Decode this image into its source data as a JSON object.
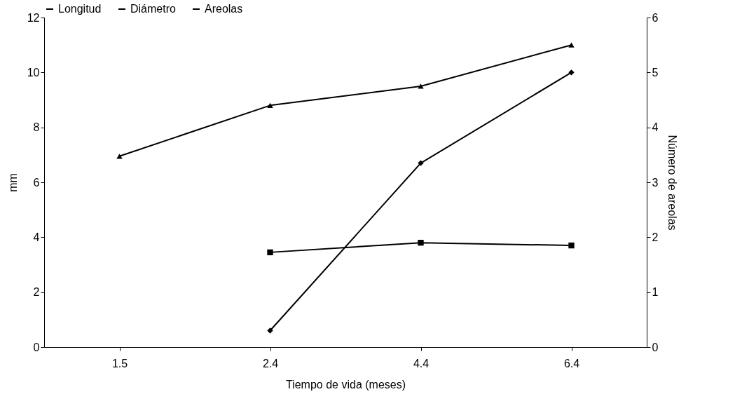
{
  "chart_data": {
    "type": "line",
    "xlabel": "Tiempo de vida (meses)",
    "ylabel": "mm",
    "y2label": "Número de areolas",
    "categories": [
      "1.5",
      "2.4",
      "4.4",
      "6.4"
    ],
    "series": [
      {
        "name": "Longitud",
        "color": "#000000",
        "marker": "triangle",
        "values": [
          6.95,
          8.8,
          9.5,
          11
        ]
      },
      {
        "name": "Diámetro",
        "color": "#000000",
        "marker": "square",
        "values": [
          null,
          3.45,
          3.8,
          3.7
        ]
      },
      {
        "name": "Areolas",
        "color": "#000000",
        "marker": "diamond",
        "axis": "y2",
        "values": [
          null,
          0.3,
          3.35,
          5
        ]
      }
    ],
    "ylim": [
      0,
      12
    ],
    "yticks": [
      0,
      2,
      4,
      6,
      8,
      10,
      12
    ],
    "y2lim": [
      0,
      6
    ],
    "y2ticks": [
      0,
      1,
      2,
      3,
      4,
      5,
      6
    ],
    "grid": false,
    "legend": "top",
    "line_style": "solid"
  }
}
